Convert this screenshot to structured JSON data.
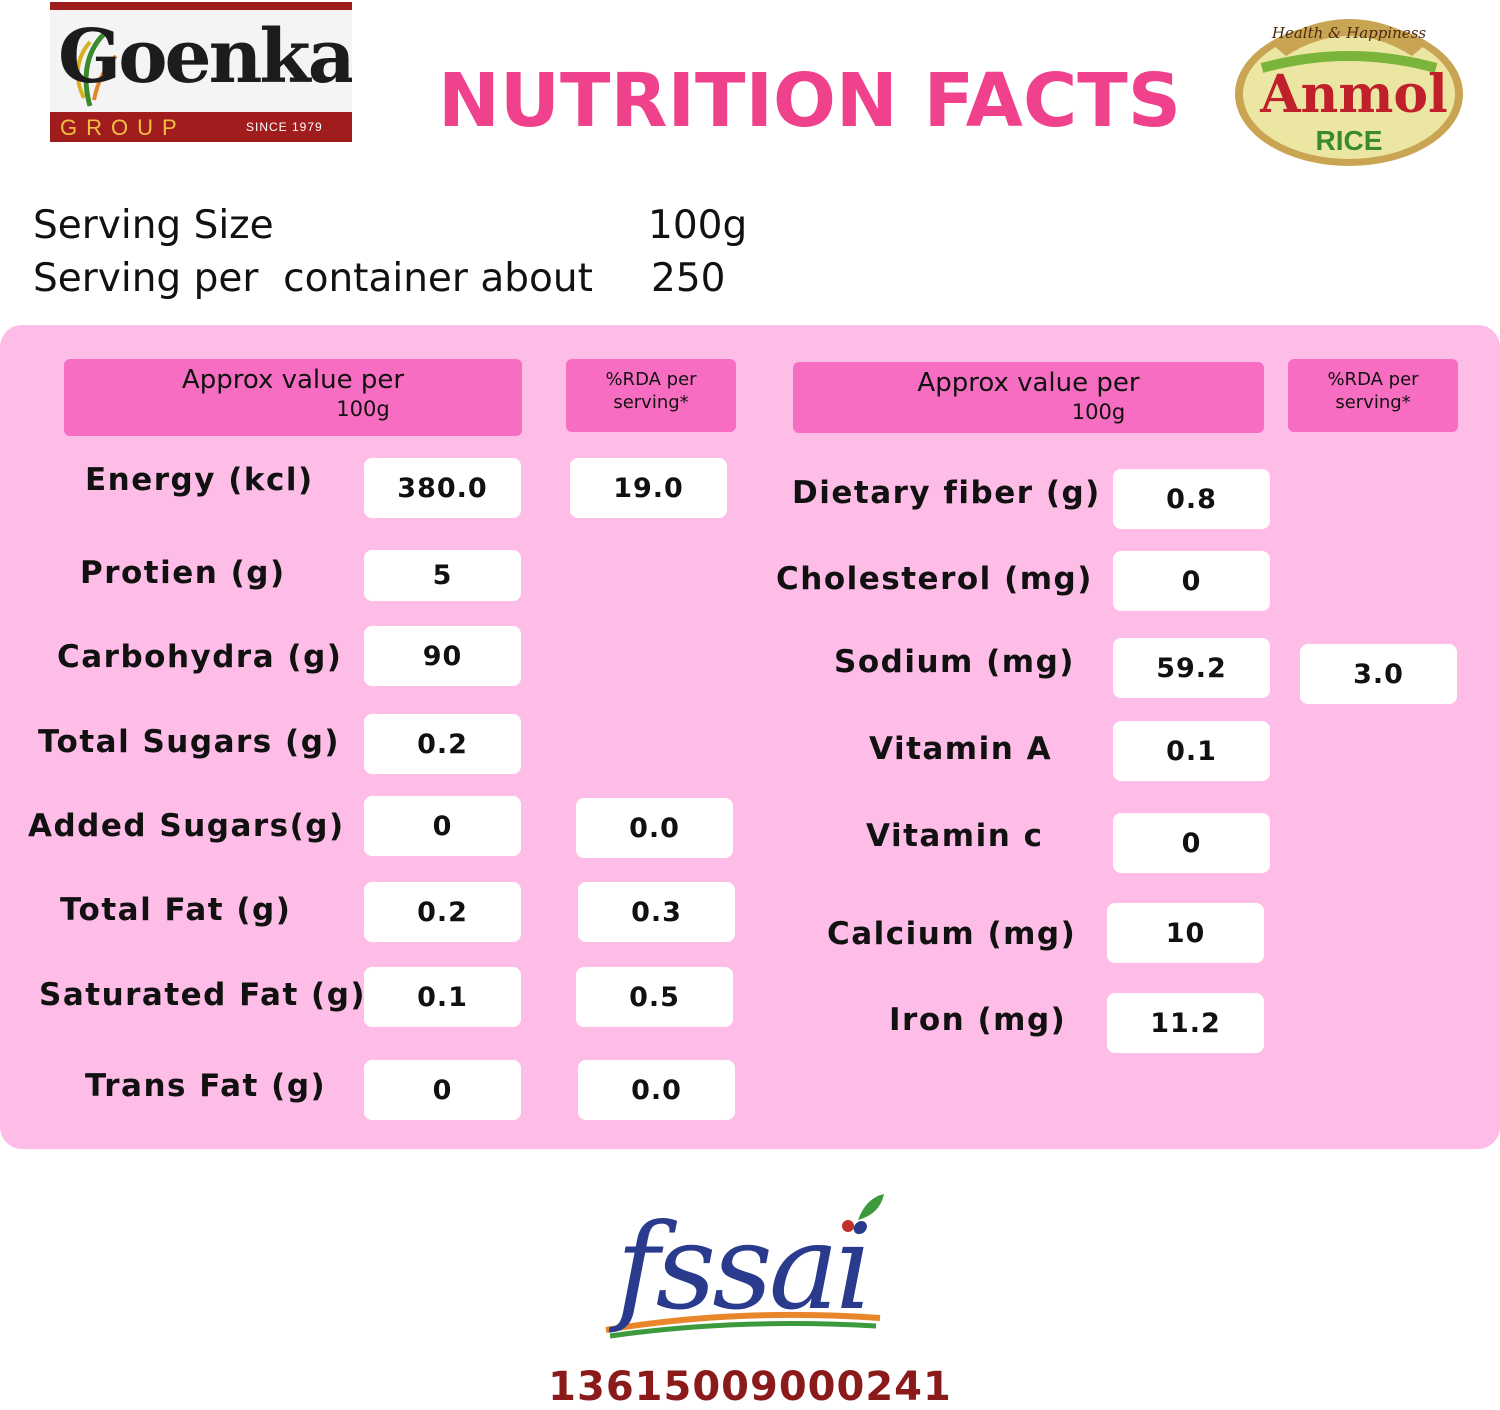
{
  "logos": {
    "goenka": {
      "name": "Goenka",
      "group": "GROUP",
      "since": "SINCE 1979"
    },
    "anmol": {
      "tagline": "Health & Happiness",
      "name": "Anmol",
      "product": "RICE"
    },
    "fssai": {
      "text": "fssai"
    }
  },
  "title": "NUTRITION FACTS",
  "serving": {
    "size_label": "Serving Size",
    "size_value": "100g",
    "per_container_label": "Serving per  container about",
    "per_container_value": "250"
  },
  "headers": {
    "approx_line1": "Approx value per",
    "approx_line2": "100g",
    "rda_line1": "%RDA per",
    "rda_line2": "serving*"
  },
  "left_rows": [
    {
      "label": "Energy (kcl)",
      "value": "380.0",
      "rda": "19.0"
    },
    {
      "label": "Protien (g)",
      "value": "5",
      "rda": ""
    },
    {
      "label": "Carbohydra (g)",
      "value": "90",
      "rda": ""
    },
    {
      "label": "Total Sugars (g)",
      "value": "0.2",
      "rda": ""
    },
    {
      "label": "Added Sugars(g)",
      "value": "0",
      "rda": "0.0"
    },
    {
      "label": "Total Fat (g)",
      "value": "0.2",
      "rda": "0.3"
    },
    {
      "label": "Saturated Fat (g)",
      "value": "0.1",
      "rda": "0.5"
    },
    {
      "label": "Trans Fat (g)",
      "value": "0",
      "rda": "0.0"
    }
  ],
  "right_rows": [
    {
      "label": "Dietary fiber (g)",
      "value": "0.8",
      "rda": ""
    },
    {
      "label": "Cholesterol (mg)",
      "value": "0",
      "rda": ""
    },
    {
      "label": "Sodium (mg)",
      "value": "59.2",
      "rda": "3.0"
    },
    {
      "label": "Vitamin A",
      "value": "0.1",
      "rda": ""
    },
    {
      "label": "Vitamin c",
      "value": "0",
      "rda": ""
    },
    {
      "label": "Calcium (mg)",
      "value": "10",
      "rda": ""
    },
    {
      "label": "Iron (mg)",
      "value": "11.2",
      "rda": ""
    }
  ],
  "license_number": "13615009000241",
  "colors": {
    "title": "#f0418c",
    "panel": "#fdbde7",
    "header": "#f76dc2",
    "license": "#8b1a1a"
  }
}
